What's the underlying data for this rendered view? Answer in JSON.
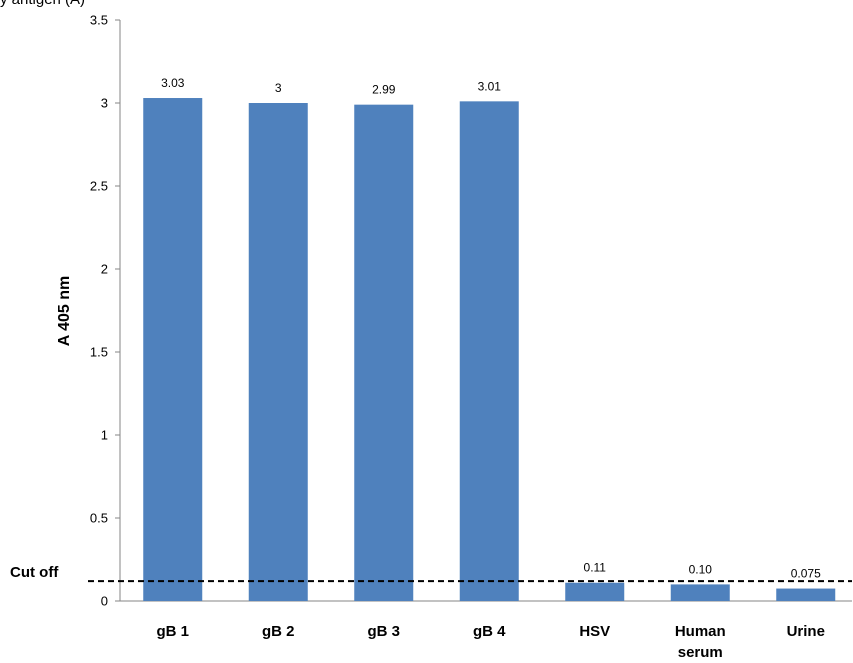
{
  "header_fragment": "y antigen (A)",
  "chart_data": {
    "type": "bar",
    "categories": [
      "gB 1",
      "gB 2",
      "gB 3",
      "gB 4",
      "HSV",
      "Human serum",
      "Urine"
    ],
    "values": [
      3.03,
      3.0,
      2.99,
      3.01,
      0.11,
      0.1,
      0.075
    ],
    "data_labels": [
      "3.03",
      "3",
      "2.99",
      "3.01",
      "0.11",
      "0.10",
      "0.075"
    ],
    "ylabel": "A 405 nm",
    "xlabel": "",
    "ylim": [
      0,
      3.5
    ],
    "yticks": [
      0,
      0.5,
      1,
      1.5,
      2,
      2.5,
      3,
      3.5
    ],
    "ytick_labels": [
      "0",
      "0.5",
      "1",
      "1.5",
      "2",
      "2.5",
      "3",
      "3.5"
    ],
    "cutoff": {
      "label": "Cut off",
      "value": 0.12,
      "style": "dashed"
    },
    "bar_color": "#4f81bd",
    "grid": false,
    "legend": "none"
  }
}
